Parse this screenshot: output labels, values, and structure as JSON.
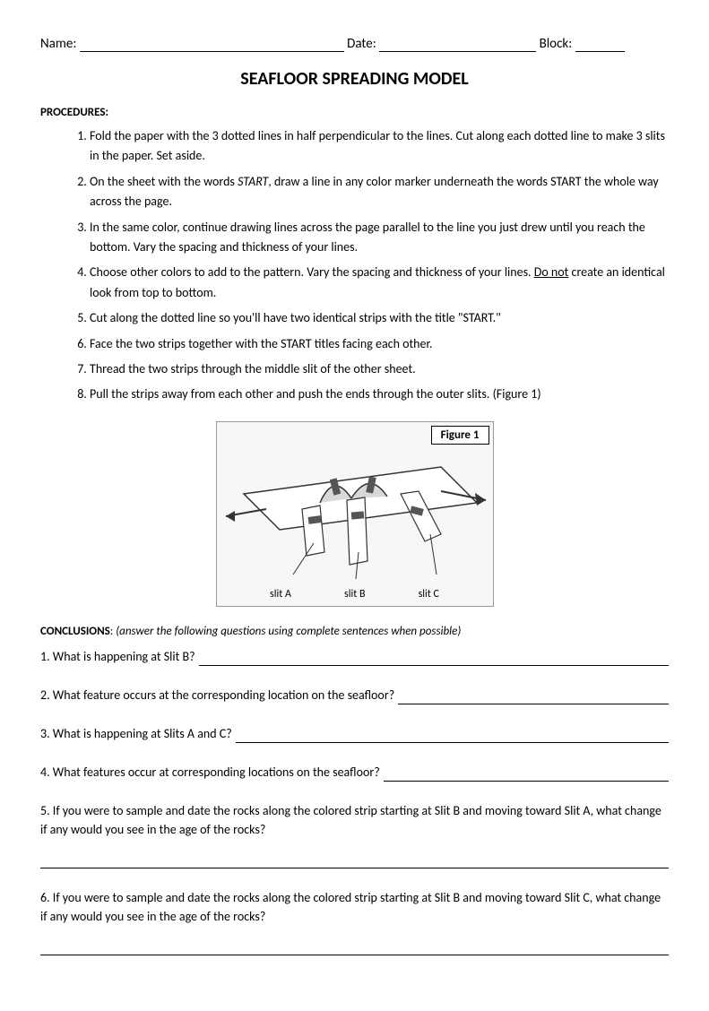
{
  "header": {
    "name_label": "Name:",
    "date_label": "Date:",
    "block_label": "Block:",
    "name_blank_width": 295,
    "date_blank_width": 175,
    "block_blank_width": 55
  },
  "title": "SEAFLOOR SPREADING MODEL",
  "procedures_label": "PROCEDURES",
  "procedures": [
    {
      "pre": "Fold the paper with the 3 dotted lines in half perpendicular to the lines.  Cut along each dotted line to make 3 slits in the paper.  Set aside."
    },
    {
      "pre": "On the sheet with the words ",
      "ital": "START",
      "post": ", draw a line in any color marker underneath the words START the whole way across the page."
    },
    {
      "pre": "In the same color, continue drawing lines across the page parallel to the line you just drew until you reach the bottom.  Vary the spacing and thickness of your lines."
    },
    {
      "pre": "Choose other colors to add to the pattern.  Vary the spacing and thickness of your lines.  ",
      "und": "Do not",
      "post": " create an identical look from top to bottom."
    },
    {
      "pre": "Cut along the dotted line so you'll have two identical strips with the title \"START.\""
    },
    {
      "pre": "Face the two strips together with the START titles facing each other."
    },
    {
      "pre": "Thread the two strips through the middle slit of the other sheet."
    },
    {
      "pre": "Pull the strips away from each other and push the ends through the outer slits. (Figure 1)"
    }
  ],
  "figure": {
    "label": "Figure 1",
    "slit_a": "slit A",
    "slit_b": "slit B",
    "slit_c": "slit C",
    "colors": {
      "line": "#333333",
      "fill_paper": "#ffffff",
      "fill_strip": "#d8d8d8",
      "fill_strip_dark": "#555555",
      "bg": "#f7f7f7"
    }
  },
  "conclusions_label": "CONCLUSIONS",
  "conclusions_instr": "(answer the following questions using complete sentences when possible)",
  "questions": {
    "q1": "1. What is happening at Slit B?",
    "q2": "2. What feature occurs at the corresponding location on the seafloor?",
    "q3": "3. What is happening at Slits A and C?",
    "q4": "4.  What features occur at corresponding locations on the seafloor?",
    "q5": "5. If you were to sample and date the rocks along the colored strip starting at Slit B and moving toward Slit A, what change if any would you see in the age of the rocks?",
    "q6": "6. If you were to sample and date the rocks along the colored strip starting at Slit B and moving toward Slit C, what change if any would you see in the age of the rocks?"
  }
}
